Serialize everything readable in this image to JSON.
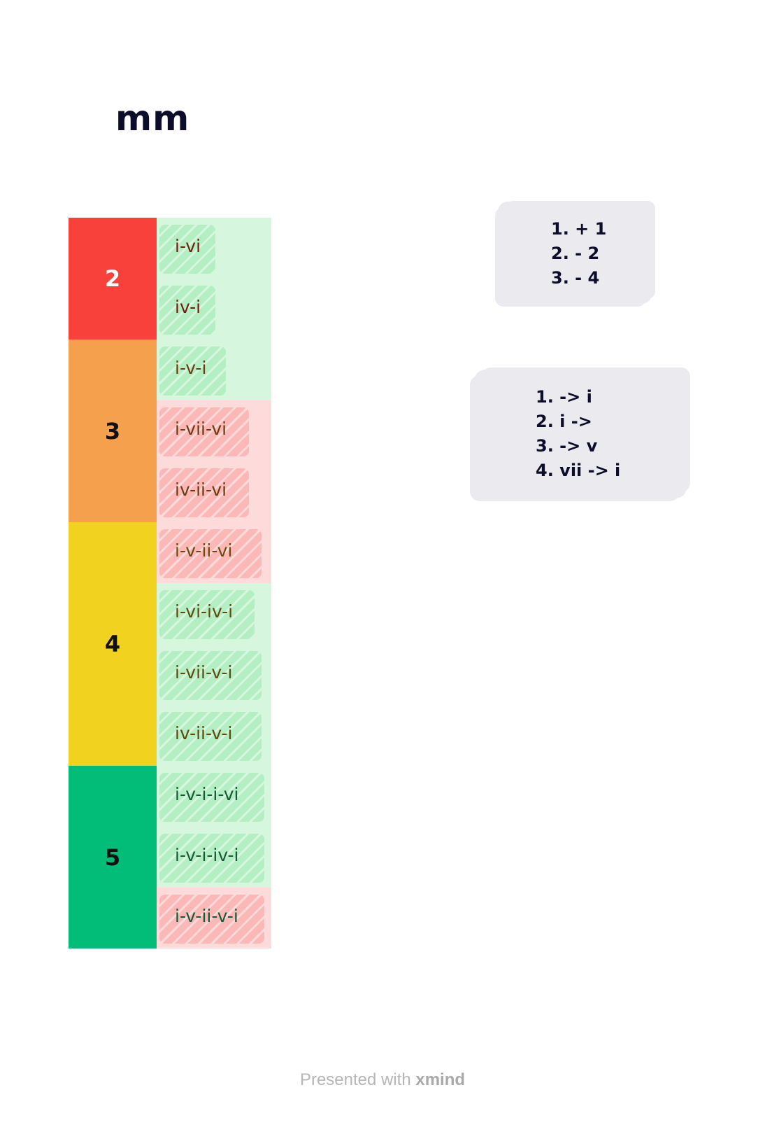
{
  "title": "mm",
  "levels": [
    {
      "label": "2",
      "color": "#f8413b",
      "text_color": "#ffffff",
      "rows": 2
    },
    {
      "label": "3",
      "color": "#f5a04c",
      "text_color": "#111111",
      "rows": 3
    },
    {
      "label": "4",
      "color": "#f1d31f",
      "text_color": "#111111",
      "rows": 4
    },
    {
      "label": "5",
      "color": "#02bd77",
      "text_color": "#111111",
      "rows": 3
    }
  ],
  "progressions": [
    {
      "label": "i-vi",
      "tone": "green",
      "text_color": "#6b1f0f"
    },
    {
      "label": "iv-i",
      "tone": "green",
      "text_color": "#6b1f0f"
    },
    {
      "label": "i-v-i",
      "tone": "green",
      "text_color": "#6b3a0f"
    },
    {
      "label": "i-vii-vi",
      "tone": "red",
      "text_color": "#6b3a0f"
    },
    {
      "label": "iv-ii-vi",
      "tone": "red",
      "text_color": "#6b3a0f"
    },
    {
      "label": "i-v-ii-vi",
      "tone": "red",
      "text_color": "#6b4a0f"
    },
    {
      "label": "i-vi-iv-i",
      "tone": "green",
      "text_color": "#5c4a0f"
    },
    {
      "label": "i-vii-v-i",
      "tone": "green",
      "text_color": "#5c4a0f"
    },
    {
      "label": "iv-ii-v-i",
      "tone": "green",
      "text_color": "#5c4a0f"
    },
    {
      "label": "i-v-i-i-vi",
      "tone": "green",
      "text_color": "#145a36"
    },
    {
      "label": "i-v-i-iv-i",
      "tone": "green",
      "text_color": "#145a36"
    },
    {
      "label": "i-v-ii-v-i",
      "tone": "red",
      "text_color": "#145a36"
    }
  ],
  "tones": {
    "green": {
      "background": "#d7f6de",
      "scribble": "#b4eec3"
    },
    "red": {
      "background": "#fddbda",
      "scribble": "#fbb8b7"
    }
  },
  "notes": [
    {
      "lines": [
        "1. + 1",
        "2. - 2",
        "3. - 4"
      ]
    },
    {
      "lines": [
        "1. -> i",
        "2. i ->",
        "3. -> v",
        "4. vii -> i"
      ]
    }
  ],
  "footer": {
    "prefix": "Presented with ",
    "brand": "xmind"
  }
}
